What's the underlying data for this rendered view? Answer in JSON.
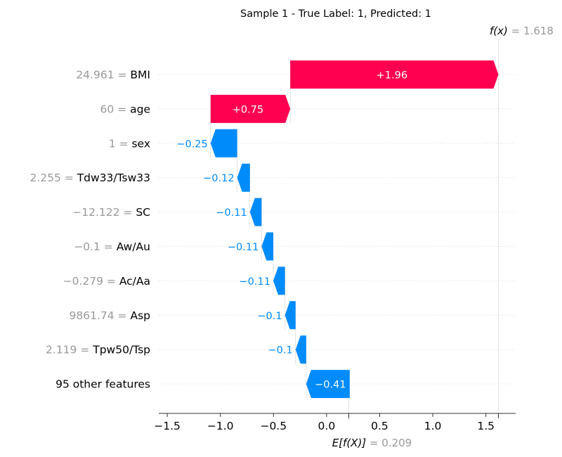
{
  "chart_data": {
    "type": "waterfall",
    "title": "Sample 1 - True Label: 1, Predicted: 1",
    "fx_label": "f(x)",
    "fx_value": "1.618",
    "fx_numeric": 1.618,
    "base_label": "E[f(X)]",
    "base_value": "0.209",
    "base_numeric": 0.209,
    "xlim": [
      -1.58,
      1.78
    ],
    "x_ticks": [
      -1.5,
      -1.0,
      -0.5,
      0.0,
      0.5,
      1.0,
      1.5
    ],
    "x_tick_labels": [
      "−1.5",
      "−1.0",
      "−0.5",
      "0.0",
      "0.5",
      "1.0",
      "1.5"
    ],
    "colors": {
      "positive": "#ff0051",
      "negative": "#008bfb",
      "feature_value": "#999999",
      "text": "#000000"
    },
    "features": [
      {
        "value": "24.961",
        "name": "BMI",
        "shap": 1.96,
        "label": "+1.96"
      },
      {
        "value": "60",
        "name": "age",
        "shap": 0.75,
        "label": "+0.75"
      },
      {
        "value": "1",
        "name": "sex",
        "shap": -0.25,
        "label": "−0.25"
      },
      {
        "value": "2.255",
        "name": "Tdw33/Tsw33",
        "shap": -0.12,
        "label": "−0.12"
      },
      {
        "value": "−12.122",
        "name": "SC",
        "shap": -0.11,
        "label": "−0.11"
      },
      {
        "value": "−0.1",
        "name": "Aw/Au",
        "shap": -0.11,
        "label": "−0.11"
      },
      {
        "value": "−0.279",
        "name": "Ac/Aa",
        "shap": -0.11,
        "label": "−0.11"
      },
      {
        "value": "9861.74",
        "name": "Asp",
        "shap": -0.1,
        "label": "−0.1"
      },
      {
        "value": "2.119",
        "name": "Tpw50/Tsp",
        "shap": -0.1,
        "label": "−0.1"
      },
      {
        "value": "",
        "name": "95 other features",
        "shap": -0.41,
        "label": "−0.41"
      }
    ]
  }
}
